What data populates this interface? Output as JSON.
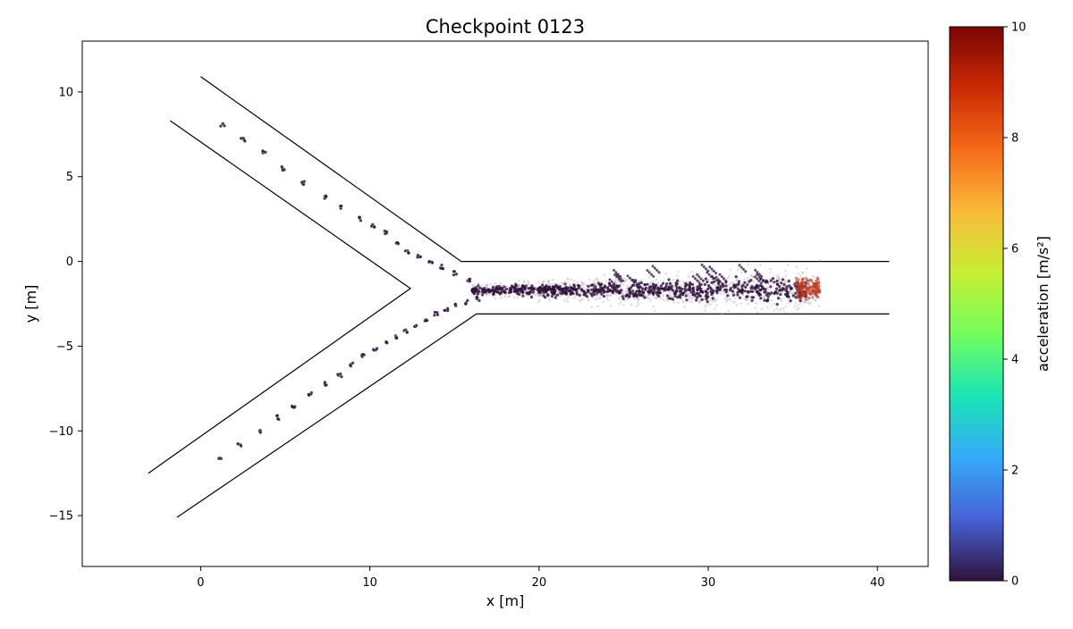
{
  "chart_data": {
    "type": "scatter",
    "title": "Checkpoint 0123",
    "xlabel": "x [m]",
    "ylabel": "y [m]",
    "xlim": [
      -7,
      43
    ],
    "ylim": [
      -18,
      13
    ],
    "xticks": [
      0,
      10,
      20,
      30,
      40
    ],
    "yticks": [
      10,
      5,
      0,
      -5,
      -10,
      -15
    ],
    "grid": false,
    "walls": [
      {
        "points": [
          [
            0,
            10.9
          ],
          [
            15.4,
            0
          ],
          [
            40.7,
            0
          ]
        ]
      },
      {
        "points": [
          [
            -1.8,
            8.3
          ],
          [
            12.4,
            -1.6
          ],
          [
            -3.1,
            -12.5
          ]
        ]
      },
      {
        "points": [
          [
            -1.4,
            -15.1
          ],
          [
            16.3,
            -3.1
          ],
          [
            40.7,
            -3.1
          ]
        ]
      }
    ],
    "upper_branch_agents": [
      [
        1.3,
        8.1
      ],
      [
        2.5,
        7.2
      ],
      [
        3.7,
        6.4
      ],
      [
        4.9,
        5.5
      ],
      [
        6.1,
        4.6
      ],
      [
        7.3,
        3.8
      ],
      [
        8.3,
        3.2
      ],
      [
        9.4,
        2.5
      ],
      [
        10.2,
        2.1
      ],
      [
        10.9,
        1.7
      ],
      [
        11.6,
        1.0
      ],
      [
        12.2,
        0.6
      ],
      [
        12.9,
        0.3
      ],
      [
        13.6,
        -0.1
      ],
      [
        14.2,
        -0.3
      ],
      [
        15.0,
        -0.7
      ],
      [
        15.8,
        -1.1
      ]
    ],
    "lower_branch_agents": [
      [
        1.1,
        -11.6
      ],
      [
        2.3,
        -10.8
      ],
      [
        3.5,
        -10.0
      ],
      [
        4.6,
        -9.2
      ],
      [
        5.5,
        -8.5
      ],
      [
        6.5,
        -7.8
      ],
      [
        7.4,
        -7.2
      ],
      [
        8.2,
        -6.7
      ],
      [
        8.9,
        -6.1
      ],
      [
        9.6,
        -5.6
      ],
      [
        10.3,
        -5.2
      ],
      [
        10.9,
        -4.8
      ],
      [
        11.5,
        -4.4
      ],
      [
        12.1,
        -4.1
      ],
      [
        12.7,
        -3.8
      ],
      [
        13.3,
        -3.4
      ],
      [
        13.9,
        -3.1
      ],
      [
        14.5,
        -2.8
      ],
      [
        15.1,
        -2.6
      ],
      [
        15.7,
        -2.4
      ],
      [
        16.4,
        -2.2
      ]
    ],
    "corridor_stream": {
      "x_range": [
        16,
        36.6
      ],
      "y_center": -1.7,
      "y_spread": 0.55,
      "color_low": "#30123b",
      "faint_color": "#a99fb0"
    },
    "exit_cluster": {
      "x_range": [
        35.2,
        36.6
      ],
      "y_center": -1.6,
      "color": "#b8331a"
    },
    "colorbar": {
      "label": "acceleration [m/s²]",
      "min": 0,
      "max": 10,
      "ticks": [
        0,
        2,
        4,
        6,
        8,
        10
      ],
      "colormap": "turbo",
      "stops": [
        "#30123b",
        "#4662d7",
        "#36aaf9",
        "#1ae4b6",
        "#72fe5e",
        "#c7ef34",
        "#faba39",
        "#f66b19",
        "#cb2a04",
        "#7a0403"
      ]
    }
  }
}
